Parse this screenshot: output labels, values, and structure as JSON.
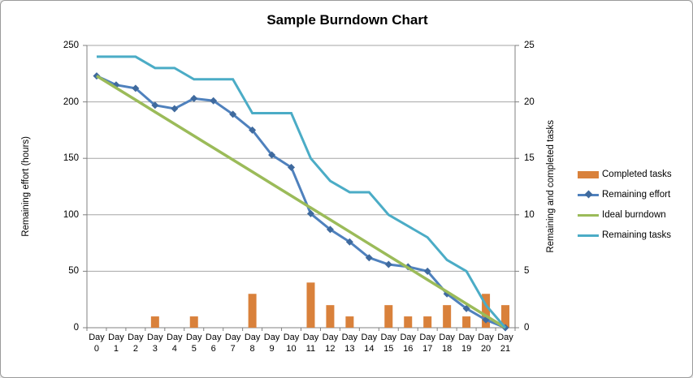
{
  "chart_data": {
    "type": "combo",
    "title": "Sample Burndown Chart",
    "ylabel_left": "Remaining effort (hours)",
    "ylabel_right": "Remaining and completed tasks",
    "left_axis": {
      "min": 0,
      "max": 250,
      "ticks": [
        0,
        50,
        100,
        150,
        200,
        250
      ]
    },
    "right_axis": {
      "min": 0,
      "max": 25,
      "ticks": [
        0,
        5,
        10,
        15,
        20,
        25
      ]
    },
    "categories": [
      "Day 0",
      "Day 1",
      "Day 2",
      "Day 3",
      "Day 4",
      "Day 5",
      "Day 6",
      "Day 7",
      "Day 8",
      "Day 9",
      "Day 10",
      "Day 11",
      "Day 12",
      "Day 13",
      "Day 14",
      "Day 15",
      "Day 16",
      "Day 17",
      "Day 18",
      "Day 19",
      "Day 20",
      "Day 21"
    ],
    "grid": true,
    "legend_position": "right",
    "colors": {
      "gridline": "#a6a6a6",
      "axis": "#808080",
      "text": "#000000",
      "background": "#ffffff"
    },
    "series": [
      {
        "name": "Completed tasks",
        "type": "bar",
        "axis": "right",
        "color": "#d9813b",
        "values": [
          0,
          0,
          0,
          1,
          0,
          1,
          0,
          0,
          3,
          0,
          0,
          4,
          2,
          1,
          0,
          2,
          1,
          1,
          2,
          1,
          3,
          2
        ]
      },
      {
        "name": "Remaining effort",
        "type": "line",
        "axis": "left",
        "color": "#4f81bd",
        "marker": "diamond",
        "marker_color": "#3f6a9e",
        "values": [
          223,
          215,
          212,
          197,
          194,
          203,
          201,
          189,
          175,
          153,
          142,
          101,
          87,
          76,
          62,
          56,
          54,
          50,
          30,
          17,
          7,
          0
        ]
      },
      {
        "name": "Ideal burndown",
        "type": "line",
        "axis": "left",
        "color": "#9bbb59",
        "marker": "none",
        "values": [
          223,
          212.4,
          201.8,
          191.1,
          180.5,
          169.9,
          159.3,
          148.7,
          138.1,
          127.4,
          116.8,
          106.2,
          95.6,
          85,
          74.3,
          63.7,
          53.1,
          42.5,
          31.9,
          21.2,
          10.6,
          0
        ]
      },
      {
        "name": "Remaining tasks",
        "type": "line",
        "axis": "right",
        "color": "#4bacc6",
        "marker": "none",
        "values": [
          24,
          24,
          24,
          23,
          23,
          22,
          22,
          22,
          19,
          19,
          19,
          15,
          13,
          12,
          12,
          10,
          9,
          8,
          6,
          5,
          2,
          0
        ]
      }
    ]
  }
}
